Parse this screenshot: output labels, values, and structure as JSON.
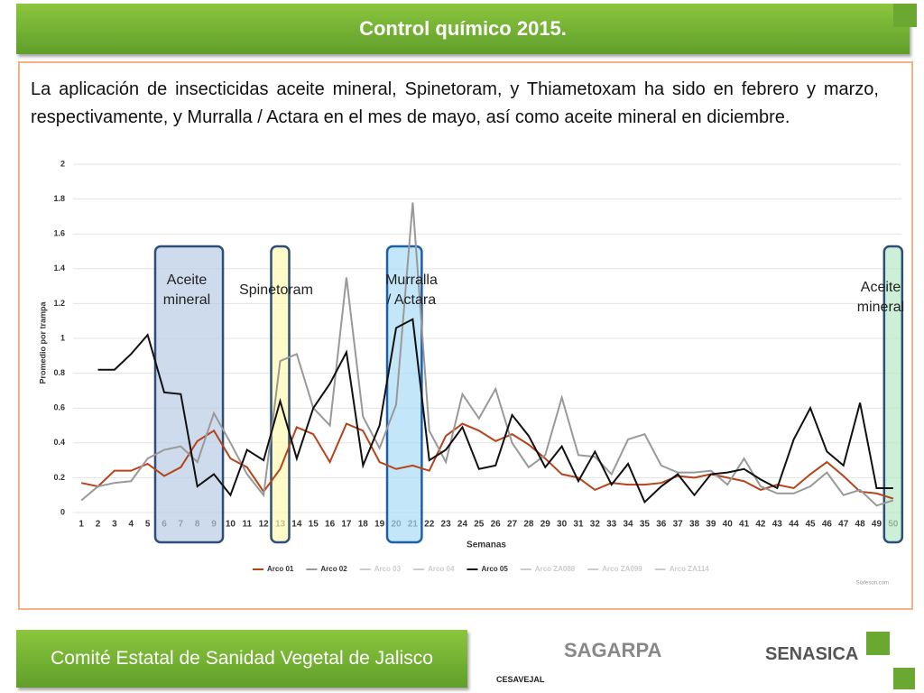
{
  "header": {
    "title": "Control químico 2015."
  },
  "paragraph": "La aplicación de insecticidas aceite mineral, Spinetoram, y Thiametoxam ha sido en febrero y marzo, respectivamente, y Murralla / Actara en el mes de mayo, así como aceite mineral en diciembre.",
  "footer": {
    "title": "Comité Estatal de Sanidad Vegetal de Jalisco",
    "logos": [
      "CESAVEJAL",
      "SAGARPA",
      "SENASICA"
    ]
  },
  "chart_data": {
    "type": "line",
    "ylabel": "Promedio por trampa",
    "xlabel": "Semanas",
    "credits": "Siafeson.com",
    "x": [
      1,
      2,
      3,
      4,
      5,
      6,
      7,
      8,
      9,
      10,
      11,
      12,
      13,
      14,
      15,
      16,
      17,
      18,
      19,
      20,
      21,
      22,
      23,
      24,
      25,
      26,
      27,
      28,
      29,
      30,
      31,
      32,
      33,
      34,
      35,
      36,
      37,
      38,
      39,
      40,
      41,
      42,
      43,
      44,
      45,
      46,
      47,
      48,
      49,
      50
    ],
    "xlim": [
      0.5,
      50.5
    ],
    "ylim": [
      0,
      2
    ],
    "yticks": [
      0,
      0.2,
      0.4,
      0.6,
      0.8,
      1,
      1.2,
      1.4,
      1.6,
      1.8,
      2
    ],
    "grid": true,
    "legend": "bottom",
    "series": [
      {
        "name": "Arco 01",
        "color": "#b5441b",
        "visible": true,
        "values": [
          0.17,
          0.15,
          0.24,
          0.24,
          0.28,
          0.21,
          0.26,
          0.41,
          0.47,
          0.31,
          0.26,
          0.12,
          0.25,
          0.49,
          0.45,
          0.29,
          0.51,
          0.47,
          0.29,
          0.25,
          0.27,
          0.24,
          0.44,
          0.51,
          0.47,
          0.41,
          0.45,
          0.39,
          0.31,
          0.22,
          0.2,
          0.13,
          0.17,
          0.16,
          0.16,
          0.17,
          0.21,
          0.2,
          0.22,
          0.2,
          0.18,
          0.13,
          0.16,
          0.14,
          0.22,
          0.29,
          0.21,
          0.12,
          0.11,
          0.08
        ]
      },
      {
        "name": "Arco 02",
        "color": "#999999",
        "visible": true,
        "values": [
          0.07,
          0.15,
          0.17,
          0.18,
          0.31,
          0.36,
          0.38,
          0.29,
          0.57,
          0.4,
          0.22,
          0.1,
          0.87,
          0.91,
          0.6,
          0.5,
          1.35,
          0.55,
          0.37,
          0.62,
          1.78,
          0.47,
          0.29,
          0.68,
          0.54,
          0.71,
          0.4,
          0.26,
          0.33,
          0.66,
          0.33,
          0.32,
          0.22,
          0.42,
          0.45,
          0.27,
          0.23,
          0.23,
          0.24,
          0.16,
          0.31,
          0.15,
          0.11,
          0.11,
          0.15,
          0.23,
          0.1,
          0.13,
          0.04,
          0.07
        ]
      },
      {
        "name": "Arco 03",
        "color": "#cccccc",
        "visible": false
      },
      {
        "name": "Arco 04",
        "color": "#cccccc",
        "visible": false
      },
      {
        "name": "Arco 05",
        "color": "#111111",
        "visible": true,
        "values": [
          null,
          0.82,
          0.82,
          0.91,
          1.02,
          0.69,
          0.68,
          0.15,
          0.22,
          0.1,
          0.36,
          0.3,
          0.64,
          0.31,
          0.6,
          0.74,
          0.92,
          0.27,
          0.5,
          1.06,
          1.11,
          0.3,
          0.36,
          0.49,
          0.25,
          0.27,
          0.56,
          0.44,
          0.26,
          0.38,
          0.18,
          0.35,
          0.16,
          0.28,
          0.06,
          0.15,
          0.22,
          0.1,
          0.22,
          0.23,
          0.25,
          0.19,
          0.14,
          0.42,
          0.6,
          0.35,
          0.27,
          0.63,
          0.14,
          0.14
        ]
      },
      {
        "name": "Arco ZA088",
        "color": "#cccccc",
        "visible": false
      },
      {
        "name": "Arco ZA099",
        "color": "#cccccc",
        "visible": false
      },
      {
        "name": "Arco ZA114",
        "color": "#cccccc",
        "visible": false
      }
    ],
    "annotations": [
      {
        "lines": [
          "Aceite",
          "mineral"
        ],
        "from": 6,
        "to": 9,
        "fill": "#b8cce4",
        "stroke": "#2f4e7a"
      },
      {
        "lines": [
          "Spinetoram"
        ],
        "from": 13,
        "to": 13,
        "fill": "#fff9b0",
        "stroke": "#2f4e7a"
      },
      {
        "lines": [
          "Murralla",
          "/ Actara"
        ],
        "from": 20,
        "to": 21,
        "fill": "#a9dcf5",
        "stroke": "#1f5fa8"
      },
      {
        "lines": [
          "Aceite",
          "mineral"
        ],
        "from": 50,
        "to": 50,
        "fill": "#b7e8c8",
        "stroke": "#2f4e7a"
      }
    ]
  }
}
